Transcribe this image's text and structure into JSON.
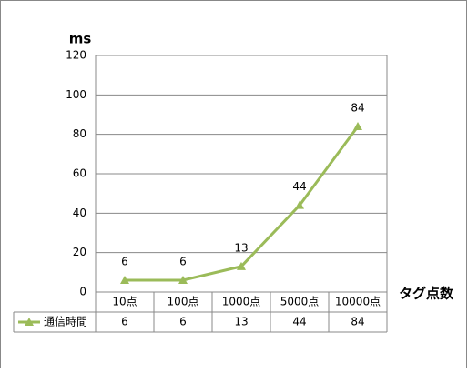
{
  "chart_data": {
    "type": "line",
    "y_label": "ms",
    "x_label": "タグ点数",
    "categories": [
      "10点",
      "100点",
      "1000点",
      "5000点",
      "10000点"
    ],
    "series": [
      {
        "name": "通信時間",
        "color": "#9bbb59",
        "values": [
          6,
          6,
          13,
          44,
          84
        ]
      }
    ],
    "ylim": [
      0,
      120
    ],
    "yticks": [
      0,
      20,
      40,
      60,
      80,
      100,
      120
    ],
    "grid": true
  }
}
